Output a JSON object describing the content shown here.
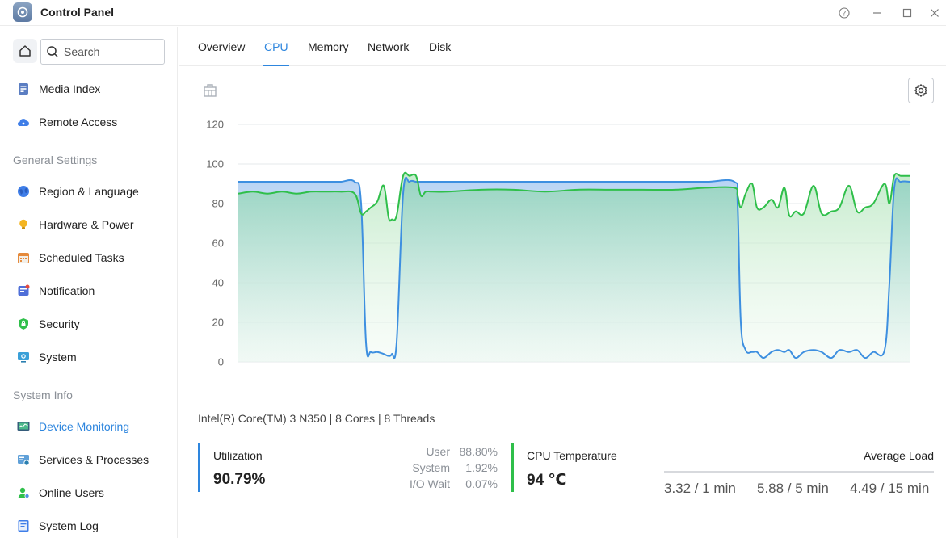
{
  "window": {
    "title": "Control Panel"
  },
  "sidebar": {
    "search_placeholder": "Search",
    "items_top": [
      {
        "label": "Media Index",
        "icon": "media-index-icon"
      },
      {
        "label": "Remote Access",
        "icon": "cloud-icon"
      }
    ],
    "general_title": "General Settings",
    "general_items": [
      {
        "label": "Region & Language",
        "icon": "globe-icon"
      },
      {
        "label": "Hardware & Power",
        "icon": "bulb-icon"
      },
      {
        "label": "Scheduled Tasks",
        "icon": "calendar-icon"
      },
      {
        "label": "Notification",
        "icon": "notification-icon"
      },
      {
        "label": "Security",
        "icon": "shield-icon"
      },
      {
        "label": "System",
        "icon": "monitor-gear-icon"
      }
    ],
    "info_title": "System Info",
    "info_items": [
      {
        "label": "Device Monitoring",
        "icon": "monitor-icon",
        "active": true
      },
      {
        "label": "Services & Processes",
        "icon": "services-icon"
      },
      {
        "label": "Online Users",
        "icon": "users-icon"
      },
      {
        "label": "System Log",
        "icon": "log-icon"
      }
    ]
  },
  "tabs": [
    {
      "label": "Overview"
    },
    {
      "label": "CPU",
      "active": true
    },
    {
      "label": "Memory"
    },
    {
      "label": "Network"
    },
    {
      "label": "Disk"
    }
  ],
  "chart_data": {
    "type": "area",
    "ylim": [
      0,
      120
    ],
    "yticks": [
      0,
      20,
      40,
      60,
      80,
      100,
      120
    ],
    "x": [
      0,
      18,
      36,
      54,
      72,
      90,
      108,
      126,
      144,
      152,
      158,
      164,
      172,
      180,
      186,
      190,
      196,
      204,
      212,
      220,
      226,
      232,
      240,
      260,
      300,
      340,
      380,
      420,
      460,
      500,
      540,
      580,
      614,
      618,
      622,
      628,
      636,
      642,
      650,
      660,
      668,
      676,
      682,
      690,
      700,
      712,
      722,
      734,
      744,
      756,
      766,
      776,
      786,
      800,
      806,
      812,
      820,
      832
    ],
    "series": [
      {
        "color": "#3d8fe0",
        "fill": "#a9c9f0",
        "values": [
          91,
          91,
          91,
          91,
          91,
          91,
          91,
          91,
          91,
          80,
          10,
          5,
          5,
          4,
          3,
          4,
          10,
          85,
          91,
          91,
          91,
          91,
          91,
          91,
          91,
          91,
          91,
          91,
          91,
          91,
          91,
          91,
          91,
          80,
          20,
          6,
          5,
          5,
          2,
          5,
          6,
          5,
          6,
          2,
          5,
          6,
          5,
          2,
          6,
          5,
          6,
          2,
          5,
          6,
          40,
          88,
          91,
          91
        ]
      },
      {
        "color": "#2fbf4a",
        "fill": "#bfe8c6",
        "values": [
          85,
          86,
          85,
          86,
          85,
          86,
          86,
          86,
          85,
          75,
          76,
          78,
          81,
          89,
          73,
          72,
          74,
          94,
          94,
          94,
          84,
          86,
          86,
          86,
          87,
          87,
          86,
          87,
          87,
          87,
          87,
          88,
          88,
          84,
          78,
          85,
          90,
          78,
          78,
          82,
          78,
          88,
          74,
          76,
          75,
          89,
          75,
          76,
          78,
          89,
          76,
          78,
          80,
          90,
          80,
          94,
          94,
          94
        ]
      }
    ]
  },
  "cpu_model": "Intel(R) Core(TM) 3 N350 | 8 Cores | 8 Threads",
  "utilization": {
    "label": "Utilization",
    "value": "90.79%",
    "stats": [
      {
        "name": "User",
        "value": "88.80%"
      },
      {
        "name": "System",
        "value": "1.92%"
      },
      {
        "name": "I/O Wait",
        "value": "0.07%"
      }
    ]
  },
  "temperature": {
    "label": "CPU Temperature",
    "value": "94 ℃"
  },
  "average_load": {
    "label": "Average Load",
    "values": [
      "3.32 / 1 min",
      "5.88 / 5 min",
      "4.49 / 15 min"
    ]
  }
}
